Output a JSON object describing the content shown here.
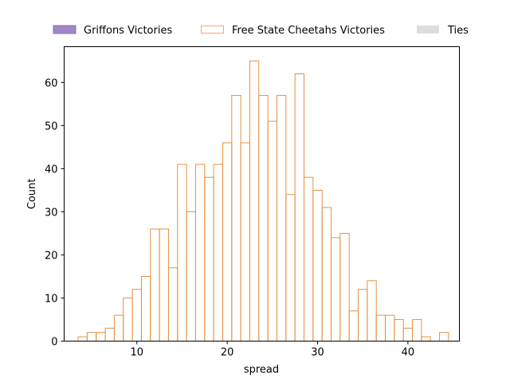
{
  "chart_data": {
    "type": "bar",
    "title": "",
    "xlabel": "spread",
    "ylabel": "Count",
    "xlim": [
      1.95,
      45.7
    ],
    "ylim": [
      0,
      68.3
    ],
    "xticks": [
      10,
      20,
      30,
      40
    ],
    "yticks": [
      0,
      10,
      20,
      30,
      40,
      50,
      60
    ],
    "grid": false,
    "legend_position": "top, outside plot",
    "legend": [
      {
        "label": "Griffons Victories",
        "color": "#9e86c8",
        "style": "filled"
      },
      {
        "label": "Free State Cheetahs Victories",
        "color": "#f4a97a",
        "style": "outline"
      },
      {
        "label": "Ties",
        "color": "#dddddd",
        "style": "filled"
      }
    ],
    "series": [
      {
        "name": "Free State Cheetahs Victories",
        "color": "#e6913f",
        "bin_width": 1,
        "x": [
          4,
          5,
          6,
          7,
          8,
          9,
          10,
          11,
          12,
          13,
          14,
          15,
          16,
          17,
          18,
          19,
          20,
          21,
          22,
          23,
          24,
          25,
          26,
          27,
          28,
          29,
          30,
          31,
          32,
          33,
          34,
          35,
          36,
          37,
          38,
          39,
          40,
          41,
          42,
          43,
          44
        ],
        "values": [
          1,
          2,
          2,
          3,
          6,
          10,
          12,
          15,
          26,
          26,
          17,
          41,
          30,
          41,
          38,
          41,
          46,
          57,
          46,
          65,
          57,
          51,
          57,
          34,
          62,
          38,
          35,
          31,
          24,
          25,
          7,
          12,
          14,
          6,
          6,
          5,
          3,
          5,
          1,
          0,
          2
        ]
      }
    ]
  }
}
